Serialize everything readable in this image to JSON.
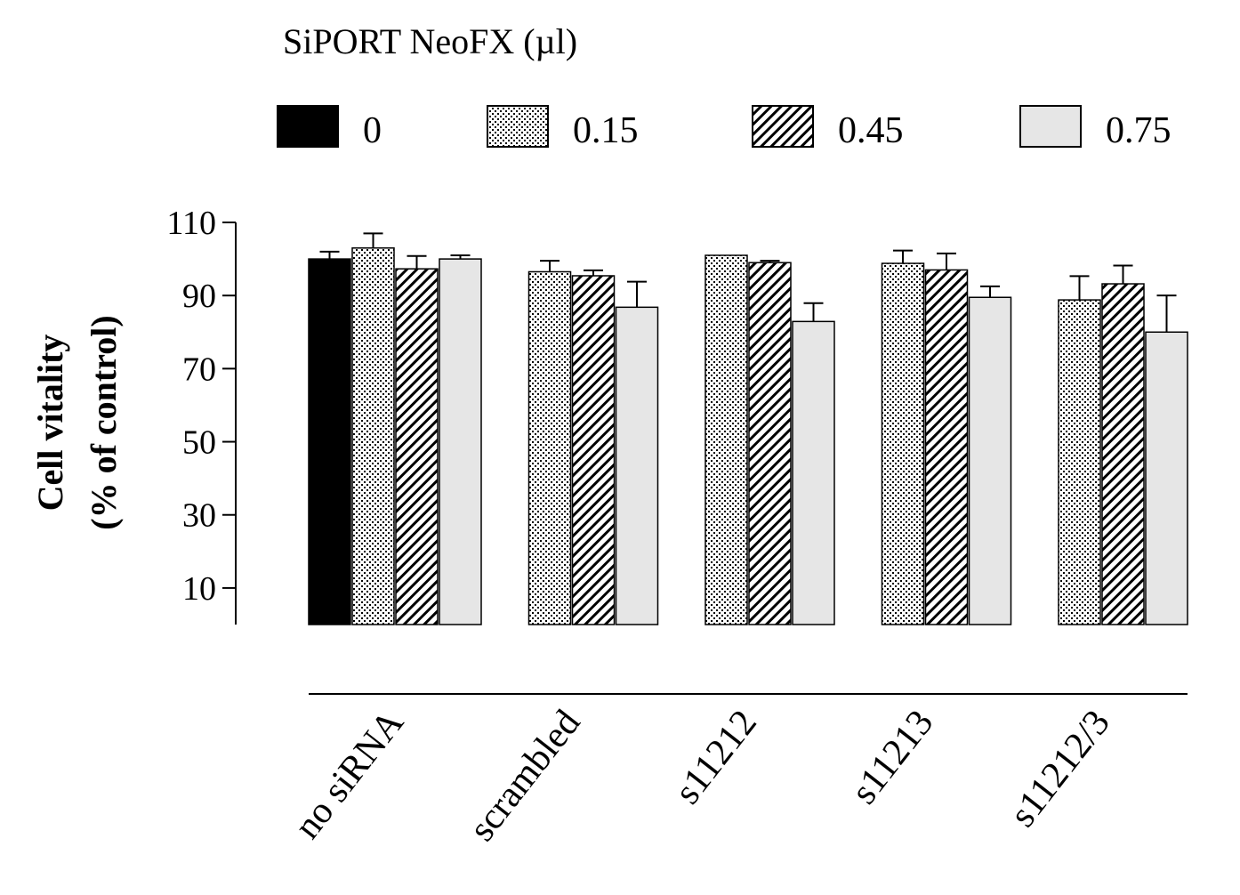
{
  "chart_data": {
    "type": "bar",
    "legend_title": "SiPORT NeoFX (µl)",
    "legend_position": "top",
    "ylabel_line1": "Cell vitality",
    "ylabel_line2": "(% of control)",
    "xlabel": "",
    "ylim": [
      0,
      110
    ],
    "yticks": [
      10,
      30,
      50,
      70,
      90,
      110
    ],
    "grid": false,
    "categories": [
      "no siRNA",
      "scrambled",
      "s11212",
      "s11213",
      "s11212/3"
    ],
    "series": [
      {
        "name": "0",
        "fill": "solid-black",
        "values": [
          100,
          null,
          null,
          null,
          null
        ],
        "errors": [
          2,
          null,
          null,
          null,
          null
        ]
      },
      {
        "name": "0.15",
        "fill": "dotted",
        "values": [
          103,
          96.5,
          101,
          98.8,
          88.8
        ],
        "errors": [
          4,
          3,
          0,
          3.5,
          6.5
        ]
      },
      {
        "name": "0.45",
        "fill": "diagonal-hatch",
        "values": [
          97.3,
          95.4,
          99,
          97,
          93.2
        ],
        "errors": [
          3.5,
          1.5,
          0.5,
          4.5,
          5
        ]
      },
      {
        "name": "0.75",
        "fill": "light-gray",
        "values": [
          100,
          86.8,
          82.9,
          89.5,
          80
        ],
        "errors": [
          1,
          7,
          5,
          3,
          10
        ]
      }
    ],
    "colors": {
      "black": "#000000",
      "gray": "#e6e6e6",
      "stroke": "#000000"
    }
  }
}
